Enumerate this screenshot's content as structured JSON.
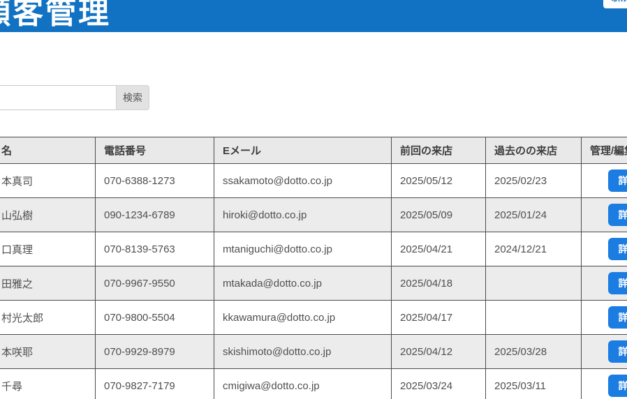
{
  "colors": {
    "header_bar": "#1172c3",
    "action_button": "#1b7ce2",
    "table_header_bg": "#e9e9e9",
    "alt_row_bg": "#ececec",
    "table_border": "#4b4b4b"
  },
  "header": {
    "title": "顧客管理",
    "new_button_label": "新規登録"
  },
  "search": {
    "input_value": "",
    "button_label": "検索"
  },
  "table": {
    "columns": [
      "名",
      "電話番号",
      "Eメール",
      "前回の来店",
      "過去のの来店",
      "管理/編集"
    ],
    "action_button_label": "詳細",
    "rows": [
      {
        "name": "本真司",
        "phone": "070-6388-1273",
        "email": "ssakamoto@dotto.co.jp",
        "last_visit": "2025/05/12",
        "past_visit": "2025/02/23"
      },
      {
        "name": "山弘樹",
        "phone": "090-1234-6789",
        "email": "hiroki@dotto.co.jp",
        "last_visit": "2025/05/09",
        "past_visit": "2025/01/24"
      },
      {
        "name": "口真理",
        "phone": "070-8139-5763",
        "email": "mtaniguchi@dotto.co.jp",
        "last_visit": "2025/04/21",
        "past_visit": "2024/12/21"
      },
      {
        "name": "田雅之",
        "phone": "070-9967-9550",
        "email": "mtakada@dotto.co.jp",
        "last_visit": "2025/04/18",
        "past_visit": ""
      },
      {
        "name": "村光太郎",
        "phone": "070-9800-5504",
        "email": "kkawamura@dotto.co.jp",
        "last_visit": "2025/04/17",
        "past_visit": ""
      },
      {
        "name": "本咲耶",
        "phone": "070-9929-8979",
        "email": "skishimoto@dotto.co.jp",
        "last_visit": "2025/04/12",
        "past_visit": "2025/03/28"
      },
      {
        "name": "千尋",
        "phone": "070-9827-7179",
        "email": "cmigiwa@dotto.co.jp",
        "last_visit": "2025/03/24",
        "past_visit": "2025/03/11"
      }
    ]
  }
}
